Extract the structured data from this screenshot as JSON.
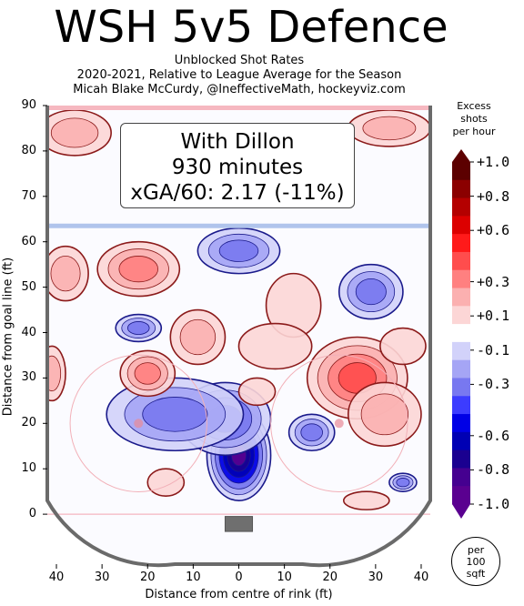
{
  "title": "WSH 5v5 Defence",
  "subtitle_lines": [
    "Unblocked Shot Rates",
    "2020-2021, Relative to League Average for the Season",
    "Micah Blake McCurdy, @IneffectiveMath, hockeyviz.com"
  ],
  "infobox": {
    "player": "With Dillon",
    "minutes": "930 minutes",
    "xga": "xGA/60: 2.17 (-11%)"
  },
  "colorbar": {
    "title_lines": [
      "Excess",
      "shots",
      "per hour"
    ],
    "tick_labels": [
      "+1.0",
      "+0.8",
      "+0.6",
      "+0.3",
      "+0.1",
      "-0.1",
      "-0.3",
      "-0.6",
      "-0.8",
      "-1.0"
    ],
    "levels": [
      1.0,
      0.8,
      0.6,
      0.3,
      0.1,
      -0.1,
      -0.3,
      -0.6,
      -0.8,
      -1.0
    ],
    "colors_high_to_low": [
      "#5c0000",
      "#8b0000",
      "#b40000",
      "#dc0000",
      "#ff1a1a",
      "#ff4d4d",
      "#ff8080",
      "#fbb0b0",
      "#fcd6d6",
      "#ffffff",
      "#d2d2fa",
      "#a5a5f5",
      "#7878f0",
      "#3c3cff",
      "#0000e6",
      "#0000b4",
      "#1a0090",
      "#450090",
      "#5a0090"
    ]
  },
  "badge": {
    "lines": [
      "per",
      "100",
      "sqft"
    ]
  },
  "chart_data": {
    "type": "heatmap",
    "title": "WSH 5v5 Defence",
    "xlabel": "Distance from centre of rink (ft)",
    "ylabel": "Distance from goal line (ft)",
    "xlim": [
      -42,
      42
    ],
    "ylim": [
      -11,
      90
    ],
    "x_ticks": [
      -40,
      -30,
      -20,
      -10,
      0,
      10,
      20,
      30,
      40
    ],
    "x_tick_labels": [
      "40",
      "30",
      "20",
      "10",
      "0",
      "10",
      "20",
      "30",
      "40"
    ],
    "y_ticks": [
      0,
      10,
      20,
      30,
      40,
      50,
      60,
      70,
      80,
      90
    ],
    "y_tick_labels": [
      "0",
      "10",
      "20",
      "30",
      "40",
      "50",
      "60",
      "70",
      "80",
      "90"
    ],
    "value_units": "excess shots per hour per 100 sqft",
    "color_range": [
      -1.0,
      1.0
    ],
    "regions": [
      {
        "x": 0,
        "y": 13,
        "rx": 7,
        "ry": 10,
        "value": -1.0
      },
      {
        "x": -3,
        "y": 21,
        "rx": 10,
        "ry": 8,
        "value": -0.5
      },
      {
        "x": -14,
        "y": 22,
        "rx": 15,
        "ry": 8,
        "value": -0.3
      },
      {
        "x": 16,
        "y": 18,
        "rx": 5,
        "ry": 4,
        "value": -0.3
      },
      {
        "x": 0,
        "y": 58,
        "rx": 9,
        "ry": 5,
        "value": -0.3
      },
      {
        "x": 29,
        "y": 49,
        "rx": 7,
        "ry": 6,
        "value": -0.4
      },
      {
        "x": -22,
        "y": 41,
        "rx": 5,
        "ry": 3,
        "value": -0.3
      },
      {
        "x": 36,
        "y": 7,
        "rx": 3,
        "ry": 2,
        "value": -0.3
      },
      {
        "x": -22,
        "y": 54,
        "rx": 9,
        "ry": 6,
        "value": 0.4
      },
      {
        "x": -38,
        "y": 53,
        "rx": 5,
        "ry": 6,
        "value": 0.2
      },
      {
        "x": -9,
        "y": 39,
        "rx": 6,
        "ry": 6,
        "value": 0.2
      },
      {
        "x": 12,
        "y": 46,
        "rx": 6,
        "ry": 7,
        "value": 0.15
      },
      {
        "x": 8,
        "y": 37,
        "rx": 8,
        "ry": 5,
        "value": 0.15
      },
      {
        "x": -20,
        "y": 31,
        "rx": 6,
        "ry": 5,
        "value": 0.3
      },
      {
        "x": 26,
        "y": 30,
        "rx": 11,
        "ry": 9,
        "value": 0.55
      },
      {
        "x": 32,
        "y": 22,
        "rx": 8,
        "ry": 7,
        "value": 0.2
      },
      {
        "x": 4,
        "y": 27,
        "rx": 4,
        "ry": 3,
        "value": 0.15
      },
      {
        "x": -36,
        "y": 84,
        "rx": 8,
        "ry": 5,
        "value": 0.2
      },
      {
        "x": 33,
        "y": 85,
        "rx": 9,
        "ry": 4,
        "value": 0.25
      },
      {
        "x": 36,
        "y": 37,
        "rx": 5,
        "ry": 4,
        "value": 0.15
      },
      {
        "x": 28,
        "y": 3,
        "rx": 5,
        "ry": 2,
        "value": 0.15
      },
      {
        "x": -41,
        "y": 31,
        "rx": 3,
        "ry": 6,
        "value": 0.2
      },
      {
        "x": -16,
        "y": 7,
        "rx": 4,
        "ry": 3,
        "value": 0.15
      }
    ]
  }
}
